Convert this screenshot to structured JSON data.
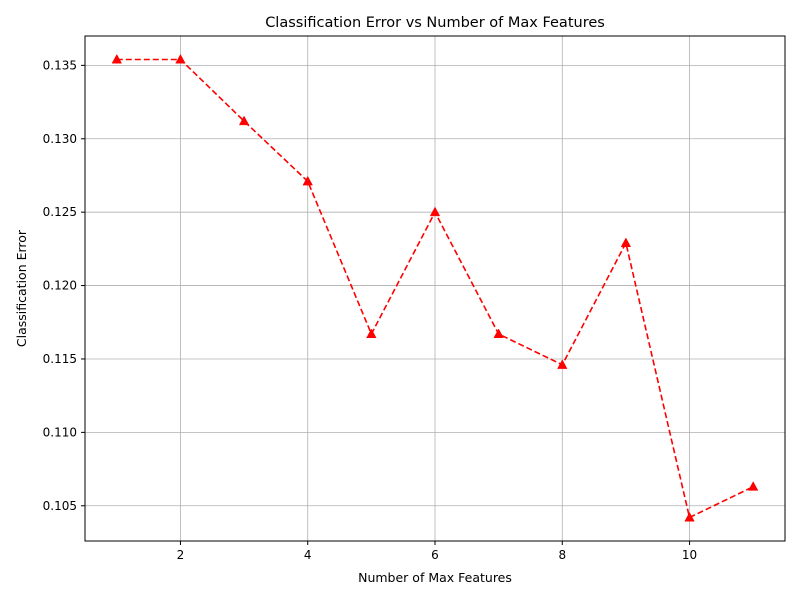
{
  "chart_data": {
    "type": "line",
    "title": "Classification Error vs Number of Max Features",
    "xlabel": "Number of Max Features",
    "ylabel": "Classification Error",
    "xlim": [
      0.5,
      11.5
    ],
    "ylim": [
      0.1026,
      0.137
    ],
    "xticks": [
      2,
      4,
      6,
      8,
      10
    ],
    "xtick_labels": [
      "2",
      "4",
      "6",
      "8",
      "10"
    ],
    "yticks": [
      0.105,
      0.11,
      0.115,
      0.12,
      0.125,
      0.13,
      0.135
    ],
    "ytick_labels": [
      "0.105",
      "0.110",
      "0.115",
      "0.120",
      "0.125",
      "0.130",
      "0.135"
    ],
    "grid": true,
    "series": [
      {
        "x": [
          1,
          2,
          3,
          4,
          5,
          6,
          7,
          8,
          9,
          10,
          11
        ],
        "y": [
          0.1354,
          0.1354,
          0.1312,
          0.1271,
          0.1167,
          0.125,
          0.1167,
          0.1146,
          0.1229,
          0.1042,
          0.1063
        ],
        "color": "#ff0000",
        "line_style": "dashed",
        "marker": "triangle-up"
      }
    ]
  }
}
